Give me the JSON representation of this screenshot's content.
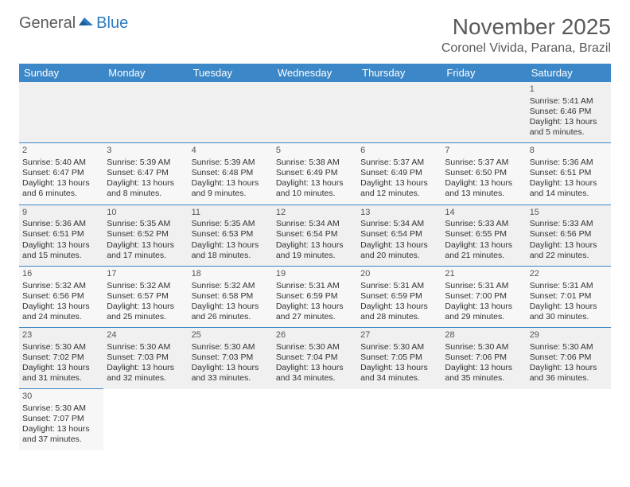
{
  "logo": {
    "text1": "General",
    "text2": "Blue"
  },
  "title": "November 2025",
  "location": "Coronel Vivida, Parana, Brazil",
  "days": [
    "Sunday",
    "Monday",
    "Tuesday",
    "Wednesday",
    "Thursday",
    "Friday",
    "Saturday"
  ],
  "header_bg": "#3b87c8",
  "weeks": [
    [
      null,
      null,
      null,
      null,
      null,
      null,
      {
        "n": "1",
        "sr": "5:41 AM",
        "ss": "6:46 PM",
        "dl1": "13 hours",
        "dl2": "and 5 minutes."
      }
    ],
    [
      {
        "n": "2",
        "sr": "5:40 AM",
        "ss": "6:47 PM",
        "dl1": "13 hours",
        "dl2": "and 6 minutes."
      },
      {
        "n": "3",
        "sr": "5:39 AM",
        "ss": "6:47 PM",
        "dl1": "13 hours",
        "dl2": "and 8 minutes."
      },
      {
        "n": "4",
        "sr": "5:39 AM",
        "ss": "6:48 PM",
        "dl1": "13 hours",
        "dl2": "and 9 minutes."
      },
      {
        "n": "5",
        "sr": "5:38 AM",
        "ss": "6:49 PM",
        "dl1": "13 hours",
        "dl2": "and 10 minutes."
      },
      {
        "n": "6",
        "sr": "5:37 AM",
        "ss": "6:49 PM",
        "dl1": "13 hours",
        "dl2": "and 12 minutes."
      },
      {
        "n": "7",
        "sr": "5:37 AM",
        "ss": "6:50 PM",
        "dl1": "13 hours",
        "dl2": "and 13 minutes."
      },
      {
        "n": "8",
        "sr": "5:36 AM",
        "ss": "6:51 PM",
        "dl1": "13 hours",
        "dl2": "and 14 minutes."
      }
    ],
    [
      {
        "n": "9",
        "sr": "5:36 AM",
        "ss": "6:51 PM",
        "dl1": "13 hours",
        "dl2": "and 15 minutes."
      },
      {
        "n": "10",
        "sr": "5:35 AM",
        "ss": "6:52 PM",
        "dl1": "13 hours",
        "dl2": "and 17 minutes."
      },
      {
        "n": "11",
        "sr": "5:35 AM",
        "ss": "6:53 PM",
        "dl1": "13 hours",
        "dl2": "and 18 minutes."
      },
      {
        "n": "12",
        "sr": "5:34 AM",
        "ss": "6:54 PM",
        "dl1": "13 hours",
        "dl2": "and 19 minutes."
      },
      {
        "n": "13",
        "sr": "5:34 AM",
        "ss": "6:54 PM",
        "dl1": "13 hours",
        "dl2": "and 20 minutes."
      },
      {
        "n": "14",
        "sr": "5:33 AM",
        "ss": "6:55 PM",
        "dl1": "13 hours",
        "dl2": "and 21 minutes."
      },
      {
        "n": "15",
        "sr": "5:33 AM",
        "ss": "6:56 PM",
        "dl1": "13 hours",
        "dl2": "and 22 minutes."
      }
    ],
    [
      {
        "n": "16",
        "sr": "5:32 AM",
        "ss": "6:56 PM",
        "dl1": "13 hours",
        "dl2": "and 24 minutes."
      },
      {
        "n": "17",
        "sr": "5:32 AM",
        "ss": "6:57 PM",
        "dl1": "13 hours",
        "dl2": "and 25 minutes."
      },
      {
        "n": "18",
        "sr": "5:32 AM",
        "ss": "6:58 PM",
        "dl1": "13 hours",
        "dl2": "and 26 minutes."
      },
      {
        "n": "19",
        "sr": "5:31 AM",
        "ss": "6:59 PM",
        "dl1": "13 hours",
        "dl2": "and 27 minutes."
      },
      {
        "n": "20",
        "sr": "5:31 AM",
        "ss": "6:59 PM",
        "dl1": "13 hours",
        "dl2": "and 28 minutes."
      },
      {
        "n": "21",
        "sr": "5:31 AM",
        "ss": "7:00 PM",
        "dl1": "13 hours",
        "dl2": "and 29 minutes."
      },
      {
        "n": "22",
        "sr": "5:31 AM",
        "ss": "7:01 PM",
        "dl1": "13 hours",
        "dl2": "and 30 minutes."
      }
    ],
    [
      {
        "n": "23",
        "sr": "5:30 AM",
        "ss": "7:02 PM",
        "dl1": "13 hours",
        "dl2": "and 31 minutes."
      },
      {
        "n": "24",
        "sr": "5:30 AM",
        "ss": "7:03 PM",
        "dl1": "13 hours",
        "dl2": "and 32 minutes."
      },
      {
        "n": "25",
        "sr": "5:30 AM",
        "ss": "7:03 PM",
        "dl1": "13 hours",
        "dl2": "and 33 minutes."
      },
      {
        "n": "26",
        "sr": "5:30 AM",
        "ss": "7:04 PM",
        "dl1": "13 hours",
        "dl2": "and 34 minutes."
      },
      {
        "n": "27",
        "sr": "5:30 AM",
        "ss": "7:05 PM",
        "dl1": "13 hours",
        "dl2": "and 34 minutes."
      },
      {
        "n": "28",
        "sr": "5:30 AM",
        "ss": "7:06 PM",
        "dl1": "13 hours",
        "dl2": "and 35 minutes."
      },
      {
        "n": "29",
        "sr": "5:30 AM",
        "ss": "7:06 PM",
        "dl1": "13 hours",
        "dl2": "and 36 minutes."
      }
    ],
    [
      {
        "n": "30",
        "sr": "5:30 AM",
        "ss": "7:07 PM",
        "dl1": "13 hours",
        "dl2": "and 37 minutes."
      },
      null,
      null,
      null,
      null,
      null,
      null
    ]
  ],
  "labels": {
    "sunrise": "Sunrise:",
    "sunset": "Sunset:",
    "daylight": "Daylight:"
  }
}
